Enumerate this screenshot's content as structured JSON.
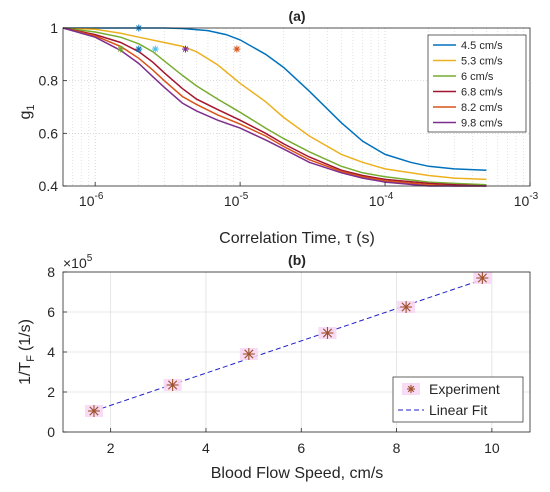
{
  "chart_data": [
    {
      "panel": "(a)",
      "type": "line",
      "title": "(a)",
      "xlabel": "Correlation Time, τ (s)",
      "ylabel": "g",
      "ylabel_subscript": "1",
      "xscale": "log",
      "xlim": [
        6e-07,
        0.001
      ],
      "ylim": [
        0.4,
        1.0
      ],
      "xticks": [
        1e-06,
        1e-05,
        0.0001,
        0.001
      ],
      "xtick_labels": [
        "10",
        "10",
        "10",
        "10"
      ],
      "xtick_exponents": [
        "-6",
        "-5",
        "-4",
        "-3"
      ],
      "yticks": [
        0.4,
        0.6,
        0.8,
        1
      ],
      "ytick_labels": [
        "0.4",
        "0.6",
        "0.8",
        "1"
      ],
      "grid": "dotted",
      "legend_position": "top-right",
      "series": [
        {
          "name": "4.5 cm/s",
          "color": "#0072BD",
          "x": [
            6e-07,
            1e-06,
            2e-06,
            3e-06,
            4e-06,
            6e-06,
            8e-06,
            1e-05,
            1.5e-05,
            2e-05,
            3e-05,
            5e-05,
            7e-05,
            0.0001,
            0.00015,
            0.0002,
            0.0003,
            0.0005
          ],
          "y": [
            1.0,
            1.0,
            1.0,
            1.0,
            0.998,
            0.99,
            0.975,
            0.955,
            0.9,
            0.85,
            0.76,
            0.64,
            0.57,
            0.52,
            0.49,
            0.475,
            0.465,
            0.46
          ],
          "marker_x": 2e-06,
          "marker_y": 1.0,
          "marker_color": "#0072BD"
        },
        {
          "name": "5.3 cm/s",
          "color": "#EDB120",
          "x": [
            6e-07,
            1e-06,
            1.5e-06,
            2e-06,
            3e-06,
            4e-06,
            5e-06,
            7e-06,
            1e-05,
            1.5e-05,
            2e-05,
            3e-05,
            5e-05,
            7e-05,
            0.0001,
            0.0002,
            0.0003,
            0.0005
          ],
          "y": [
            1.0,
            0.995,
            0.98,
            0.965,
            0.945,
            0.93,
            0.91,
            0.86,
            0.79,
            0.72,
            0.66,
            0.59,
            0.52,
            0.49,
            0.465,
            0.44,
            0.43,
            0.425
          ],
          "marker_x": 9.5e-06,
          "marker_y": 0.92,
          "marker_color": "#D95319"
        },
        {
          "name": "6 cm/s",
          "color": "#77AC30",
          "x": [
            6e-07,
            1e-06,
            1.5e-06,
            2e-06,
            2.5e-06,
            3e-06,
            4e-06,
            5e-06,
            7e-06,
            1e-05,
            1.5e-05,
            2e-05,
            3e-05,
            5e-05,
            7e-05,
            0.0001,
            0.0002,
            0.0003,
            0.0005
          ],
          "y": [
            1.0,
            0.985,
            0.965,
            0.94,
            0.91,
            0.875,
            0.82,
            0.78,
            0.73,
            0.68,
            0.62,
            0.58,
            0.53,
            0.475,
            0.45,
            0.435,
            0.415,
            0.41,
            0.405
          ],
          "marker_x": 4.2e-06,
          "marker_y": 0.92,
          "marker_color": "#7E2F8E"
        },
        {
          "name": "6.8 cm/s",
          "color": "#A2142F",
          "x": [
            6e-07,
            1e-06,
            1.5e-06,
            2e-06,
            2.5e-06,
            3e-06,
            4e-06,
            5e-06,
            7e-06,
            1e-05,
            1.5e-05,
            2e-05,
            3e-05,
            5e-05,
            7e-05,
            0.0001,
            0.0002,
            0.0003,
            0.0005
          ],
          "y": [
            1.0,
            0.975,
            0.945,
            0.91,
            0.87,
            0.83,
            0.77,
            0.73,
            0.69,
            0.65,
            0.6,
            0.56,
            0.51,
            0.46,
            0.44,
            0.425,
            0.41,
            0.405,
            0.4
          ],
          "marker_x": 2.6e-06,
          "marker_y": 0.92,
          "marker_color": "#4DBEEE"
        },
        {
          "name": "8.2 cm/s",
          "color": "#D95319",
          "x": [
            6e-07,
            1e-06,
            1.5e-06,
            2e-06,
            2.5e-06,
            3e-06,
            4e-06,
            5e-06,
            7e-06,
            1e-05,
            1.5e-05,
            2e-05,
            3e-05,
            5e-05,
            7e-05,
            0.0001,
            0.0002,
            0.0003,
            0.0005
          ],
          "y": [
            1.0,
            0.97,
            0.93,
            0.885,
            0.84,
            0.8,
            0.74,
            0.71,
            0.67,
            0.635,
            0.59,
            0.55,
            0.5,
            0.455,
            0.435,
            0.42,
            0.405,
            0.4,
            0.4
          ],
          "marker_x": 2e-06,
          "marker_y": 0.92,
          "marker_color": "#0072BD"
        },
        {
          "name": "9.8 cm/s",
          "color": "#7E2F8E",
          "x": [
            6e-07,
            1e-06,
            1.5e-06,
            2e-06,
            2.5e-06,
            3e-06,
            4e-06,
            5e-06,
            7e-06,
            1e-05,
            1.5e-05,
            2e-05,
            3e-05,
            5e-05,
            7e-05,
            0.0001,
            0.0002,
            0.0003,
            0.0005
          ],
          "y": [
            1.0,
            0.965,
            0.915,
            0.865,
            0.815,
            0.775,
            0.715,
            0.685,
            0.65,
            0.62,
            0.575,
            0.54,
            0.49,
            0.45,
            0.43,
            0.415,
            0.4,
            0.4,
            0.4
          ],
          "marker_x": 1.5e-06,
          "marker_y": 0.92,
          "marker_color": "#77AC30"
        }
      ]
    },
    {
      "panel": "(b)",
      "type": "scatter",
      "title": "(b)",
      "xlabel": "Blood Flow Speed, cm/s",
      "ylabel": "1/T",
      "ylabel_subscript": "F",
      "ylabel_unit": "(1/s)",
      "y_multiplier_base": "×10",
      "y_multiplier_exponent": "5",
      "xlim": [
        1,
        10.8
      ],
      "ylim": [
        0,
        8
      ],
      "xticks": [
        2,
        4,
        6,
        8,
        10
      ],
      "xtick_labels": [
        "2",
        "4",
        "6",
        "8",
        "10"
      ],
      "yticks": [
        0,
        2,
        4,
        6,
        8
      ],
      "ytick_labels": [
        "0",
        "2",
        "4",
        "6",
        "8"
      ],
      "grid": "on",
      "legend_position": "bottom-right",
      "series": [
        {
          "name": "Experiment",
          "color": "#A0522D",
          "x": [
            1.65,
            3.3,
            4.9,
            6.55,
            8.2,
            9.8
          ],
          "y": [
            1.05,
            2.35,
            3.9,
            4.95,
            6.25,
            7.7
          ],
          "err": [
            0.12,
            0.15,
            0.18,
            0.2,
            0.2,
            0.2
          ]
        },
        {
          "name": "Linear Fit",
          "color": "#1F1FC8",
          "linestyle": "dashed",
          "x": [
            1.65,
            9.8
          ],
          "y": [
            1.05,
            7.62
          ]
        }
      ]
    }
  ]
}
